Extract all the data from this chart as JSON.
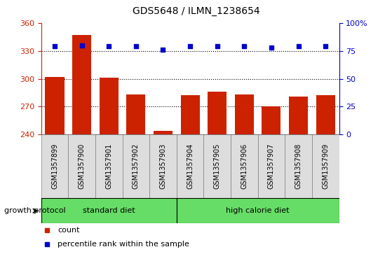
{
  "title": "GDS5648 / ILMN_1238654",
  "samples": [
    "GSM1357899",
    "GSM1357900",
    "GSM1357901",
    "GSM1357902",
    "GSM1357903",
    "GSM1357904",
    "GSM1357905",
    "GSM1357906",
    "GSM1357907",
    "GSM1357908",
    "GSM1357909"
  ],
  "counts": [
    302,
    347,
    301,
    283,
    244,
    282,
    286,
    283,
    270,
    281,
    282
  ],
  "percentile_ranks": [
    79,
    80,
    79,
    79,
    76,
    79,
    79,
    79,
    78,
    79,
    79
  ],
  "ylim_left": [
    240,
    360
  ],
  "ylim_right": [
    0,
    100
  ],
  "yticks_left": [
    240,
    270,
    300,
    330,
    360
  ],
  "yticks_right": [
    0,
    25,
    50,
    75,
    100
  ],
  "bar_color": "#cc2200",
  "dot_color": "#0000cc",
  "bar_bottom": 240,
  "groups": [
    {
      "label": "standard diet",
      "start": 0,
      "end": 5
    },
    {
      "label": "high calorie diet",
      "start": 5,
      "end": 11
    }
  ],
  "group_color": "#66dd66",
  "group_label_prefix": "growth protocol",
  "tick_label_color": "#cc2200",
  "right_axis_color": "#0000cc",
  "grid_color": "black",
  "xtick_bg_color": "#dddddd",
  "plot_bg": "#ffffff",
  "legend_items": [
    {
      "label": "count",
      "color": "#cc2200"
    },
    {
      "label": "percentile rank within the sample",
      "color": "#0000cc"
    }
  ]
}
